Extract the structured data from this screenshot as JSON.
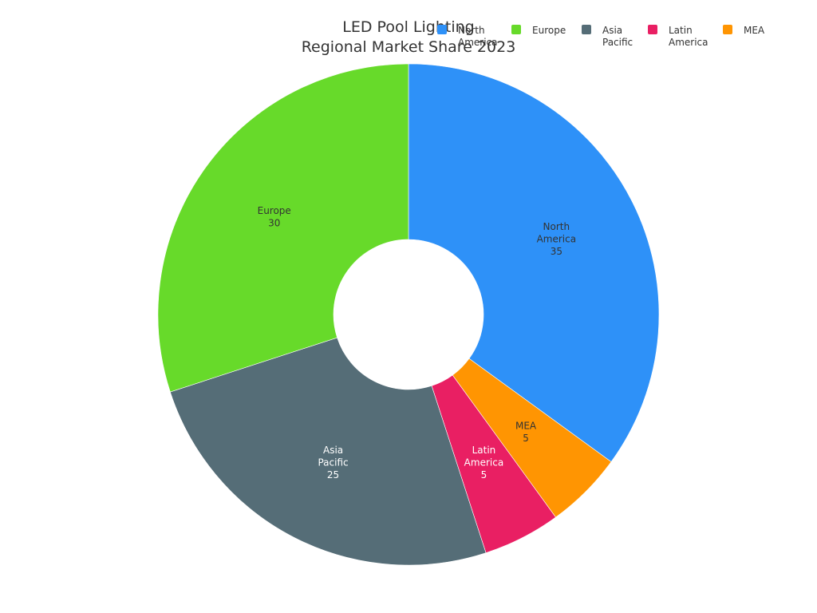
{
  "chart_data": {
    "type": "pie",
    "title": "LED Pool Lighting Regional Market Share 2023",
    "title_lines": [
      "LED Pool Lighting",
      "Regional Market Share 2023"
    ],
    "hole": true,
    "legend_position": "top-right",
    "categories": [
      "North America",
      "Europe",
      "Asia Pacific",
      "Latin America",
      "MEA"
    ],
    "slices": [
      {
        "label": "North America",
        "label_lines": [
          "North",
          "America"
        ],
        "value": 35,
        "color": "#2e91f8",
        "text_color": "#333333"
      },
      {
        "label": "MEA",
        "label_lines": [
          "MEA"
        ],
        "value": 5,
        "color": "#ff9502",
        "text_color": "#333333"
      },
      {
        "label": "Latin America",
        "label_lines": [
          "Latin",
          "America"
        ],
        "value": 5,
        "color": "#e91f63",
        "text_color": "#ffffff"
      },
      {
        "label": "Asia Pacific",
        "label_lines": [
          "Asia",
          "Pacific"
        ],
        "value": 25,
        "color": "#556d77",
        "text_color": "#ffffff"
      },
      {
        "label": "Europe",
        "label_lines": [
          "Europe"
        ],
        "value": 30,
        "color": "#67da2a",
        "text_color": "#333333"
      }
    ],
    "legend": [
      {
        "label_lines": [
          "North",
          "America"
        ],
        "color": "#2e91f8"
      },
      {
        "label_lines": [
          "Europe"
        ],
        "color": "#67da2a"
      },
      {
        "label_lines": [
          "Asia",
          "Pacific"
        ],
        "color": "#556d77"
      },
      {
        "label_lines": [
          "Latin",
          "America"
        ],
        "color": "#e91f63"
      },
      {
        "label_lines": [
          "MEA"
        ],
        "color": "#ff9502"
      }
    ]
  }
}
